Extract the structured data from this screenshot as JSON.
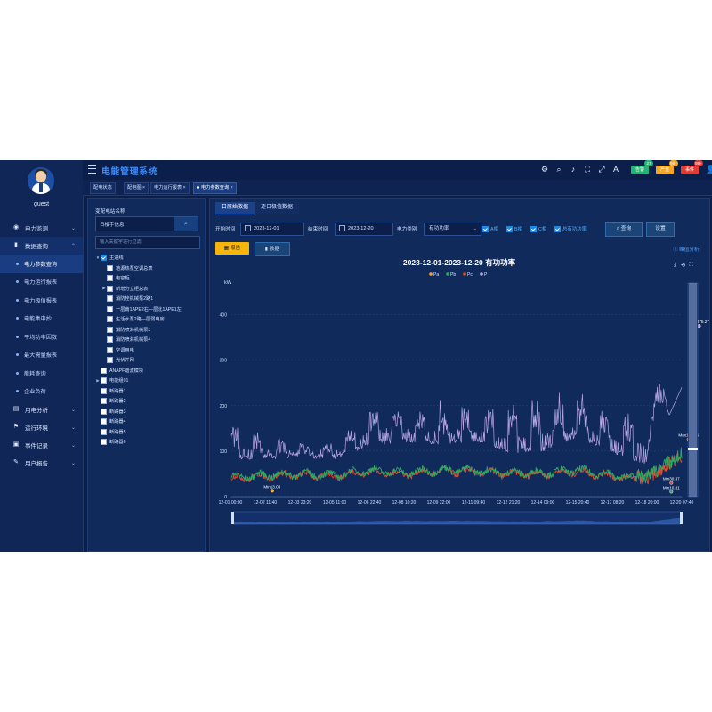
{
  "user": {
    "name": "guest"
  },
  "app": {
    "title": "电能管理系统"
  },
  "header": {
    "icons": [
      "settings-icon",
      "search-icon",
      "volume-icon",
      "fullscreen-icon",
      "expand-icon",
      "translate-icon"
    ],
    "badges": [
      {
        "label": "告警",
        "count": "27",
        "color": "#22b573",
        "count_color": "#22b573"
      },
      {
        "label": "严重",
        "count": "99+",
        "color": "#f5a623",
        "count_color": "#f5a623"
      },
      {
        "label": "事件",
        "count": "99+",
        "color": "#e53935",
        "count_color": "#e53935"
      }
    ]
  },
  "sidebar": {
    "items": [
      {
        "label": "电力监测",
        "icon": "globe-icon",
        "open": false
      },
      {
        "label": "数据查询",
        "icon": "bar-chart-icon",
        "open": true
      },
      {
        "label": "用电分析",
        "icon": "analysis-icon",
        "open": false
      },
      {
        "label": "运行环境",
        "icon": "environment-icon",
        "open": false
      },
      {
        "label": "事件记录",
        "icon": "record-icon",
        "open": false
      },
      {
        "label": "用户报告",
        "icon": "report-icon",
        "open": false
      }
    ],
    "subitems": [
      "电力参数查询",
      "电力运行报表",
      "电力极值报表",
      "电能集中抄",
      "平均功率因数",
      "最大需量报表",
      "能耗查询",
      "企业负荷"
    ],
    "active_subitem": 0
  },
  "tabs": [
    {
      "label": "配电状态",
      "closable": false
    },
    {
      "label": "配电图",
      "closable": true
    },
    {
      "label": "电力运行报表",
      "closable": true
    },
    {
      "label": "电力参数查询",
      "closable": true,
      "active": true
    }
  ],
  "tree": {
    "label": "变配电站名称",
    "station_value": "日楼宇信息",
    "filter_placeholder": "输入关键字进行过滤",
    "nodes": [
      {
        "label": "主进线",
        "level": 0,
        "caret": "▼",
        "checked": true
      },
      {
        "label": "地源热泵空调总表",
        "level": 1,
        "caret": "",
        "checked": false
      },
      {
        "label": "电容柜",
        "level": 1,
        "caret": "",
        "checked": false
      },
      {
        "label": "新增分立柜总表",
        "level": 1,
        "caret": "▶",
        "checked": false
      },
      {
        "label": "消防栓机械泵2路1",
        "level": 1,
        "caret": "",
        "checked": false
      },
      {
        "label": "一层南1APE2右—层北1APE1左",
        "level": 1,
        "caret": "",
        "checked": false
      },
      {
        "label": "生活水泵2路—层弱电房",
        "level": 1,
        "caret": "",
        "checked": false
      },
      {
        "label": "消防喷淋机械泵3",
        "level": 1,
        "caret": "",
        "checked": false
      },
      {
        "label": "消防喷淋机械泵4",
        "level": 1,
        "caret": "",
        "checked": false
      },
      {
        "label": "空调用电",
        "level": 1,
        "caret": "",
        "checked": false
      },
      {
        "label": "光伏并网",
        "level": 1,
        "caret": "",
        "checked": false
      },
      {
        "label": "ANAPF谐波模块",
        "level": 0,
        "caret": "",
        "checked": false
      },
      {
        "label": "电能组01",
        "level": 0,
        "caret": "▶",
        "checked": false
      },
      {
        "label": "断路器1",
        "level": 0,
        "caret": "",
        "checked": false
      },
      {
        "label": "断路器2",
        "level": 0,
        "caret": "",
        "checked": false
      },
      {
        "label": "断路器3",
        "level": 0,
        "caret": "",
        "checked": false
      },
      {
        "label": "断路器4",
        "level": 0,
        "caret": "",
        "checked": false
      },
      {
        "label": "断路器5",
        "level": 0,
        "caret": "",
        "checked": false
      },
      {
        "label": "断路器6",
        "level": 0,
        "caret": "",
        "checked": false
      }
    ]
  },
  "main": {
    "tabs": [
      {
        "label": "日原始数据",
        "active": true
      },
      {
        "label": "逐日极值数据",
        "active": false
      }
    ],
    "filters": {
      "start_label": "开始时间",
      "start_value": "2023-12-01",
      "end_label": "结束时间",
      "end_value": "2023-12-20",
      "type_label": "电力类别",
      "type_value": "有功功率",
      "checks": [
        "A相",
        "B相",
        "C相",
        "总有功功率"
      ],
      "query_label": "查询",
      "settings_label": "设置"
    },
    "actions": {
      "export_label": "报告",
      "data_label": "数据"
    },
    "peak_link": "峰值分析"
  },
  "chart_data": {
    "type": "line",
    "title": "2023-12-01-2023-12-20  有功功率",
    "ylabel": "kW",
    "ylim": [
      0,
      450
    ],
    "yticks": [
      0,
      100,
      200,
      300,
      400
    ],
    "xticks": [
      "12-01 00:00",
      "12-02 11:40",
      "12-03 23:20",
      "12-05 11:00",
      "12-06 22:40",
      "12-08 10:20",
      "12-09 22:00",
      "12-11 09:40",
      "12-12 21:20",
      "12-14 09:00",
      "12-15 20:40",
      "12-17 08:20",
      "12-18 20:00",
      "12-20 07:40"
    ],
    "legend": [
      "Pa",
      "Pb",
      "Pc",
      "P"
    ],
    "legend_position": "top-center",
    "colors": {
      "Pa": "#f5a623",
      "Pb": "#27ae60",
      "Pc": "#e8472b",
      "P": "#b9a6e6"
    },
    "series": [
      {
        "name": "P",
        "profile": {
          "base": [
            80,
            82,
            85,
            80,
            110,
            120,
            115,
            120,
            95,
            100,
            130,
            95,
            70,
            240
          ],
          "peak": [
            160,
            130,
            120,
            110,
            200,
            190,
            200,
            185,
            200,
            205,
            215,
            180,
            190,
            375
          ]
        }
      },
      {
        "name": "Pc",
        "profile": {
          "base": [
            40,
            45,
            48,
            45,
            55,
            50,
            55,
            55,
            50,
            50,
            55,
            45,
            35,
            85
          ]
        }
      },
      {
        "name": "Pb",
        "profile": {
          "base": [
            42,
            47,
            50,
            47,
            58,
            52,
            58,
            58,
            52,
            52,
            58,
            47,
            37,
            88
          ]
        }
      }
    ],
    "annotations": [
      {
        "label": "Max375.27",
        "x_index": 13.5,
        "value": 375.27,
        "series": "P"
      },
      {
        "label": "Max126.06",
        "x_index": 13.2,
        "value": 126,
        "series": "Pc"
      },
      {
        "label": "Min13.03",
        "x_index": 1.2,
        "value": 13,
        "series": "Pa"
      },
      {
        "label": "Min30.37",
        "x_index": 12.7,
        "value": 30,
        "series": "Pc"
      },
      {
        "label": "Min10.81",
        "x_index": 12.7,
        "value": 10.8,
        "series": "Pb"
      }
    ]
  }
}
